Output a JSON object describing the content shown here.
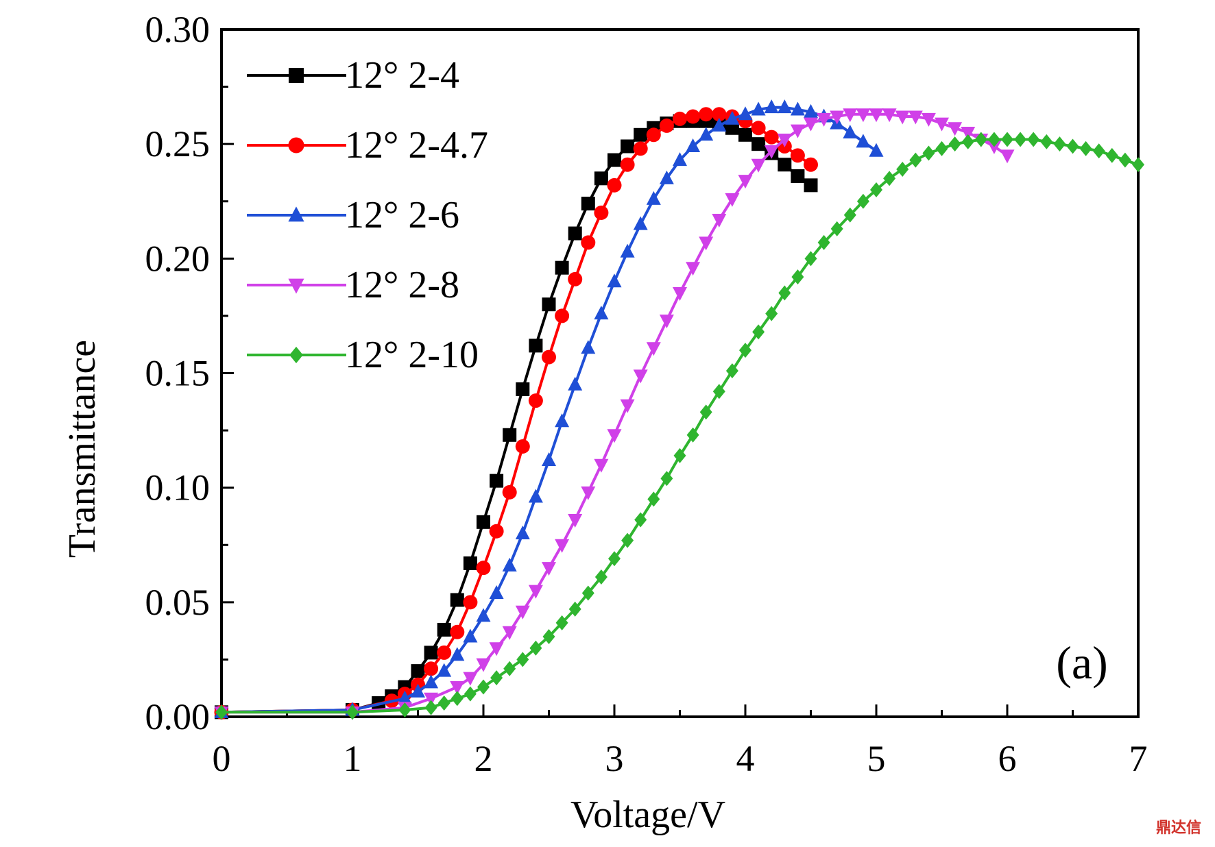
{
  "chart_data": {
    "type": "line",
    "title": "",
    "xlabel": "Voltage/V",
    "ylabel": "Transmittance",
    "xlim": [
      0,
      7
    ],
    "ylim": [
      0,
      0.3
    ],
    "x_ticks": [
      "0",
      "1",
      "2",
      "3",
      "4",
      "5",
      "6",
      "7"
    ],
    "y_ticks": [
      "0.00",
      "0.05",
      "0.10",
      "0.15",
      "0.20",
      "0.25",
      "0.30"
    ],
    "panel_label": "(a)",
    "grid": false,
    "legend_position": "top-left",
    "series": [
      {
        "name": "12° 2-4",
        "color": "#000000",
        "marker": "square",
        "x": [
          0,
          1.0,
          1.2,
          1.3,
          1.4,
          1.5,
          1.6,
          1.7,
          1.8,
          1.9,
          2.0,
          2.1,
          2.2,
          2.3,
          2.4,
          2.5,
          2.6,
          2.7,
          2.8,
          2.9,
          3.0,
          3.1,
          3.2,
          3.3,
          3.4,
          3.5,
          3.6,
          3.7,
          3.8,
          3.9,
          4.0,
          4.1,
          4.2,
          4.3,
          4.4,
          4.5
        ],
        "y": [
          0.002,
          0.003,
          0.006,
          0.009,
          0.013,
          0.02,
          0.028,
          0.038,
          0.051,
          0.067,
          0.085,
          0.103,
          0.123,
          0.143,
          0.162,
          0.18,
          0.196,
          0.211,
          0.224,
          0.235,
          0.243,
          0.249,
          0.254,
          0.257,
          0.259,
          0.26,
          0.26,
          0.26,
          0.259,
          0.257,
          0.254,
          0.25,
          0.246,
          0.241,
          0.236,
          0.232
        ]
      },
      {
        "name": "12° 2-4.7",
        "color": "#ff0000",
        "marker": "circle",
        "x": [
          0,
          1.0,
          1.3,
          1.4,
          1.5,
          1.6,
          1.7,
          1.8,
          1.9,
          2.0,
          2.1,
          2.2,
          2.3,
          2.4,
          2.5,
          2.6,
          2.7,
          2.8,
          2.9,
          3.0,
          3.1,
          3.2,
          3.3,
          3.4,
          3.5,
          3.6,
          3.7,
          3.8,
          3.9,
          4.0,
          4.1,
          4.2,
          4.3,
          4.4,
          4.5
        ],
        "y": [
          0.002,
          0.003,
          0.007,
          0.01,
          0.014,
          0.021,
          0.028,
          0.037,
          0.05,
          0.065,
          0.081,
          0.098,
          0.118,
          0.138,
          0.157,
          0.175,
          0.191,
          0.207,
          0.22,
          0.232,
          0.241,
          0.248,
          0.254,
          0.258,
          0.261,
          0.262,
          0.263,
          0.263,
          0.262,
          0.26,
          0.257,
          0.253,
          0.249,
          0.245,
          0.241
        ]
      },
      {
        "name": "12° 2-6",
        "color": "#1f4fd6",
        "marker": "triangle-up",
        "x": [
          0,
          1.0,
          1.4,
          1.5,
          1.6,
          1.7,
          1.8,
          1.9,
          2.0,
          2.1,
          2.2,
          2.3,
          2.4,
          2.5,
          2.6,
          2.7,
          2.8,
          2.9,
          3.0,
          3.1,
          3.2,
          3.3,
          3.4,
          3.5,
          3.6,
          3.7,
          3.8,
          3.9,
          4.0,
          4.1,
          4.2,
          4.3,
          4.4,
          4.5,
          4.6,
          4.7,
          4.8,
          4.9,
          5.0
        ],
        "y": [
          0.002,
          0.003,
          0.008,
          0.011,
          0.015,
          0.02,
          0.027,
          0.035,
          0.044,
          0.054,
          0.066,
          0.08,
          0.096,
          0.112,
          0.129,
          0.145,
          0.161,
          0.176,
          0.19,
          0.203,
          0.215,
          0.226,
          0.235,
          0.243,
          0.249,
          0.254,
          0.258,
          0.261,
          0.263,
          0.265,
          0.266,
          0.266,
          0.265,
          0.264,
          0.262,
          0.259,
          0.255,
          0.251,
          0.247
        ]
      },
      {
        "name": "12° 2-8",
        "color": "#d040e8",
        "marker": "triangle-down",
        "x": [
          0,
          1.0,
          1.4,
          1.6,
          1.8,
          1.9,
          2.0,
          2.1,
          2.2,
          2.3,
          2.4,
          2.5,
          2.6,
          2.7,
          2.8,
          2.9,
          3.0,
          3.1,
          3.2,
          3.3,
          3.4,
          3.5,
          3.6,
          3.7,
          3.8,
          3.9,
          4.0,
          4.1,
          4.2,
          4.3,
          4.4,
          4.5,
          4.6,
          4.7,
          4.8,
          4.9,
          5.0,
          5.1,
          5.2,
          5.3,
          5.4,
          5.5,
          5.6,
          5.7,
          5.8,
          5.9,
          6.0
        ],
        "y": [
          0.002,
          0.002,
          0.004,
          0.008,
          0.013,
          0.017,
          0.023,
          0.03,
          0.037,
          0.046,
          0.055,
          0.065,
          0.075,
          0.086,
          0.098,
          0.11,
          0.123,
          0.136,
          0.149,
          0.161,
          0.173,
          0.185,
          0.196,
          0.207,
          0.217,
          0.226,
          0.234,
          0.241,
          0.247,
          0.252,
          0.256,
          0.259,
          0.261,
          0.262,
          0.263,
          0.263,
          0.263,
          0.263,
          0.262,
          0.262,
          0.261,
          0.259,
          0.257,
          0.255,
          0.252,
          0.249,
          0.245
        ]
      },
      {
        "name": "12° 2-10",
        "color": "#2fb52f",
        "marker": "diamond",
        "x": [
          0,
          1.0,
          1.4,
          1.6,
          1.7,
          1.8,
          1.9,
          2.0,
          2.1,
          2.2,
          2.3,
          2.4,
          2.5,
          2.6,
          2.7,
          2.8,
          2.9,
          3.0,
          3.1,
          3.2,
          3.3,
          3.4,
          3.5,
          3.6,
          3.7,
          3.8,
          3.9,
          4.0,
          4.1,
          4.2,
          4.3,
          4.4,
          4.5,
          4.6,
          4.7,
          4.8,
          4.9,
          5.0,
          5.1,
          5.2,
          5.3,
          5.4,
          5.5,
          5.6,
          5.7,
          5.8,
          5.9,
          6.0,
          6.1,
          6.2,
          6.3,
          6.4,
          6.5,
          6.6,
          6.7,
          6.8,
          6.9,
          7.0
        ],
        "y": [
          0.002,
          0.002,
          0.003,
          0.004,
          0.006,
          0.008,
          0.01,
          0.013,
          0.017,
          0.021,
          0.025,
          0.03,
          0.035,
          0.041,
          0.047,
          0.054,
          0.061,
          0.069,
          0.077,
          0.086,
          0.095,
          0.104,
          0.114,
          0.123,
          0.133,
          0.142,
          0.151,
          0.16,
          0.168,
          0.176,
          0.185,
          0.192,
          0.2,
          0.207,
          0.213,
          0.219,
          0.225,
          0.23,
          0.235,
          0.239,
          0.243,
          0.246,
          0.248,
          0.25,
          0.251,
          0.252,
          0.252,
          0.252,
          0.252,
          0.252,
          0.251,
          0.25,
          0.249,
          0.248,
          0.247,
          0.245,
          0.243,
          0.241
        ]
      }
    ]
  },
  "watermark": "鼎达信"
}
